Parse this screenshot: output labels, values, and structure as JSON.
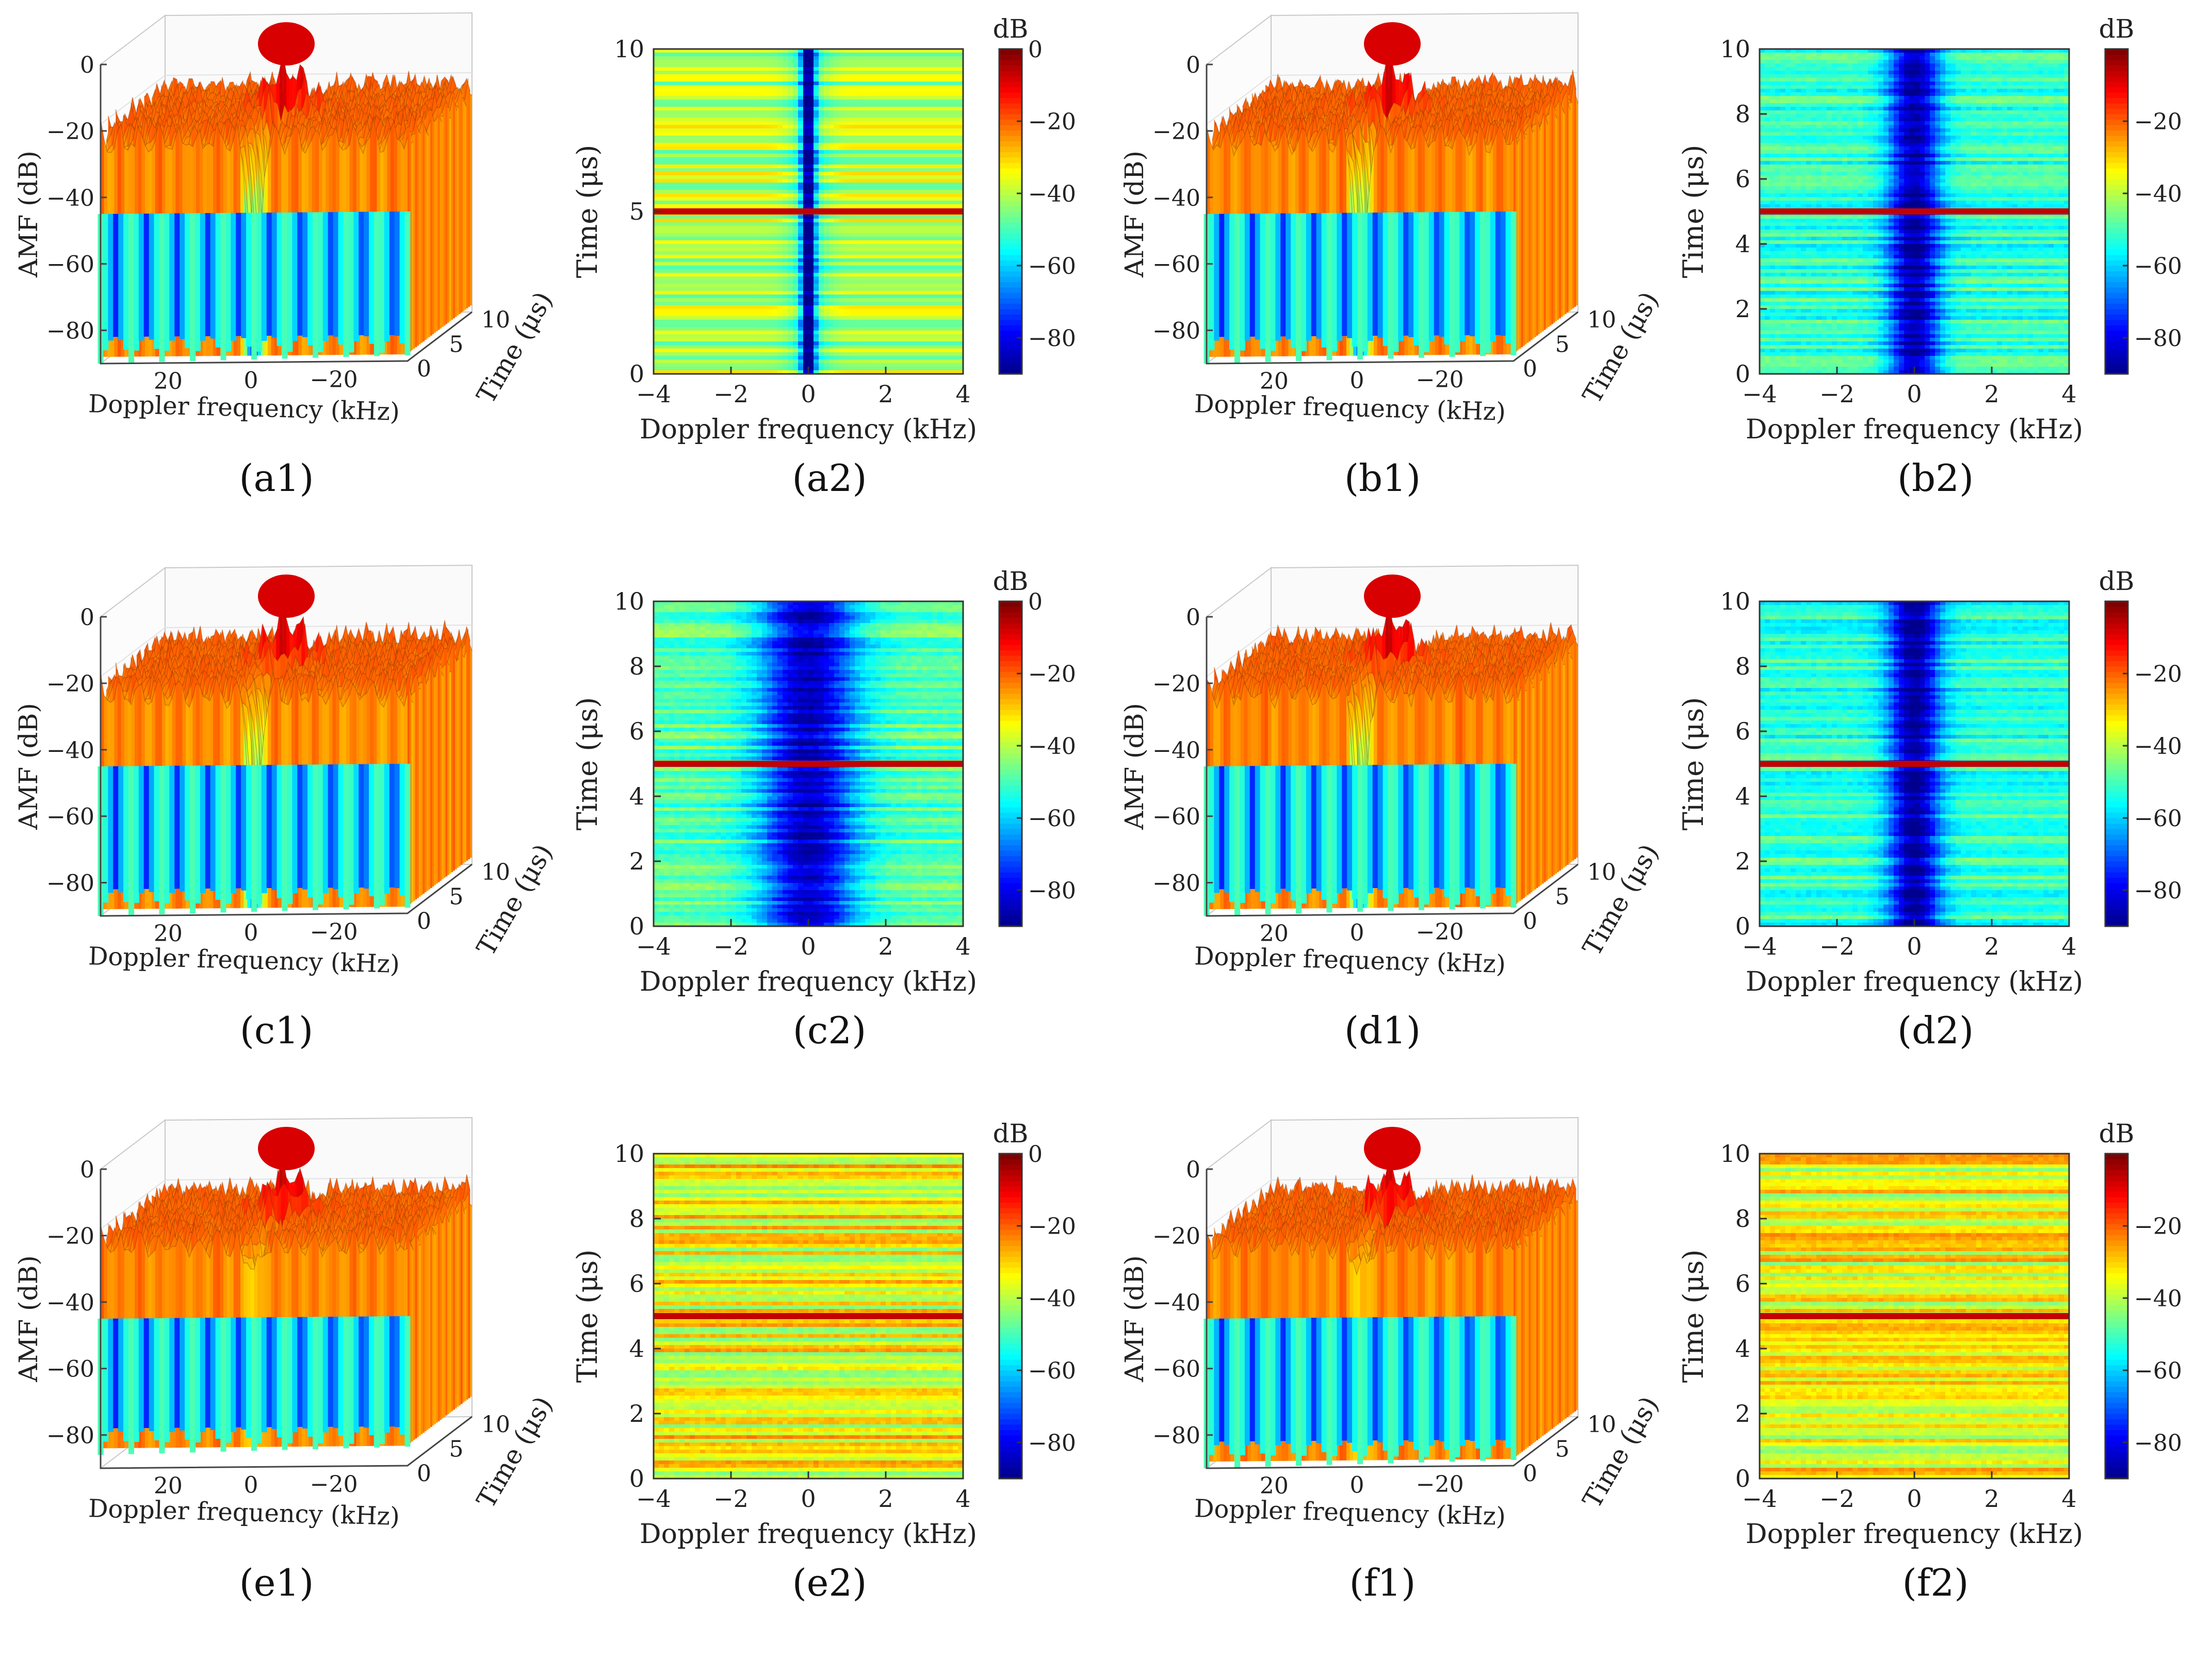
{
  "figure": {
    "colormap": [
      "#00008f",
      "#0000ff",
      "#0080ff",
      "#00ffff",
      "#80ff80",
      "#ffff00",
      "#ff8000",
      "#ff0000",
      "#800000"
    ],
    "panels": [
      {
        "id": "a1",
        "type": "surface3d",
        "caption_letter": "a1",
        "row": 0,
        "col": 0,
        "notch": 1.0,
        "floor": -88
      },
      {
        "id": "a2",
        "type": "heatmap",
        "caption_letter": "a2",
        "row": 0,
        "col": 1,
        "variant": "a"
      },
      {
        "id": "b1",
        "type": "surface3d",
        "caption_letter": "b1",
        "row": 0,
        "col": 2,
        "notch": 0.9,
        "floor": -88
      },
      {
        "id": "b2",
        "type": "heatmap",
        "caption_letter": "b2",
        "row": 0,
        "col": 3,
        "variant": "b"
      },
      {
        "id": "c1",
        "type": "surface3d",
        "caption_letter": "c1",
        "row": 1,
        "col": 0,
        "notch": 0.8,
        "floor": -88
      },
      {
        "id": "c2",
        "type": "heatmap",
        "caption_letter": "c2",
        "row": 1,
        "col": 1,
        "variant": "c"
      },
      {
        "id": "d1",
        "type": "surface3d",
        "caption_letter": "d1",
        "row": 1,
        "col": 2,
        "notch": 0.85,
        "floor": -88
      },
      {
        "id": "d2",
        "type": "heatmap",
        "caption_letter": "d2",
        "row": 1,
        "col": 3,
        "variant": "d"
      },
      {
        "id": "e1",
        "type": "surface3d",
        "caption_letter": "e1",
        "row": 2,
        "col": 0,
        "notch": 0.15,
        "floor": -84
      },
      {
        "id": "e2",
        "type": "heatmap",
        "caption_letter": "e2",
        "row": 2,
        "col": 1,
        "variant": "e"
      },
      {
        "id": "f1",
        "type": "surface3d",
        "caption_letter": "f1",
        "row": 2,
        "col": 2,
        "notch": 0.15,
        "floor": -88
      },
      {
        "id": "f2",
        "type": "heatmap",
        "caption_letter": "f2",
        "row": 2,
        "col": 3,
        "variant": "f"
      }
    ]
  },
  "chart_data": [
    {
      "type": "surface",
      "panel": "a1",
      "title": "(a1)",
      "xlabel": "Doppler frequency (kHz)",
      "ylabel": "Time (μs)",
      "zlabel": "AMF (dB)",
      "xticks": [
        "20",
        "0",
        "−20"
      ],
      "yticks": [
        "0",
        "5",
        "10"
      ],
      "zticks": [
        "0",
        "−20",
        "−40",
        "−60",
        "−80"
      ],
      "zlim": [
        -90,
        0
      ],
      "peak_db": 0,
      "description_values": {
        "peak_time_us": 5,
        "peak_doppler_khz": 0
      }
    },
    {
      "type": "heatmap",
      "panel": "a2",
      "title": "(a2)",
      "xlabel": "Doppler frequency (kHz)",
      "ylabel": "Time (μs)",
      "colorbar_label": "dB",
      "xticks": [
        "−4",
        "−2",
        "0",
        "2",
        "4"
      ],
      "yticks": [
        "0",
        "5",
        "10"
      ],
      "cticks": [
        "0",
        "−20",
        "−40",
        "−60",
        "−80"
      ],
      "xlim": [
        -4,
        4
      ],
      "ylim": [
        0,
        10
      ],
      "clim": [
        -90,
        0
      ],
      "peak_line_time_us": 5,
      "null_doppler_khz": 0
    },
    {
      "type": "surface",
      "panel": "b1",
      "title": "(b1)",
      "xlabel": "Doppler frequency (kHz)",
      "ylabel": "Time (μs)",
      "zlabel": "AMF (dB)",
      "xticks": [
        "20",
        "0",
        "−20"
      ],
      "yticks": [
        "0",
        "5",
        "10"
      ],
      "zticks": [
        "0",
        "−20",
        "−40",
        "−60",
        "−80"
      ],
      "zlim": [
        -90,
        0
      ]
    },
    {
      "type": "heatmap",
      "panel": "b2",
      "title": "(b2)",
      "xlabel": "Doppler frequency (kHz)",
      "ylabel": "Time (μs)",
      "colorbar_label": "dB",
      "xticks": [
        "−4",
        "−2",
        "0",
        "2",
        "4"
      ],
      "yticks": [
        "0",
        "2",
        "4",
        "6",
        "8",
        "10"
      ],
      "cticks": [
        "−20",
        "−40",
        "−60",
        "−80"
      ],
      "xlim": [
        -4,
        4
      ],
      "ylim": [
        0,
        10
      ],
      "clim": [
        -90,
        0
      ],
      "peak_line_time_us": 5,
      "null_doppler_khz": 0
    },
    {
      "type": "surface",
      "panel": "c1",
      "title": "(c1)",
      "xlabel": "Doppler frequency (kHz)",
      "ylabel": "Time (μs)",
      "zlabel": "AMF (dB)",
      "xticks": [
        "20",
        "0",
        "−20"
      ],
      "yticks": [
        "0",
        "5",
        "10"
      ],
      "zticks": [
        "0",
        "−20",
        "−40",
        "−60",
        "−80"
      ],
      "zlim": [
        -90,
        0
      ]
    },
    {
      "type": "heatmap",
      "panel": "c2",
      "title": "(c2)",
      "xlabel": "Doppler frequency (kHz)",
      "ylabel": "Time (μs)",
      "colorbar_label": "dB",
      "xticks": [
        "−4",
        "−2",
        "0",
        "2",
        "4"
      ],
      "yticks": [
        "0",
        "2",
        "4",
        "6",
        "8",
        "10"
      ],
      "cticks": [
        "0",
        "−20",
        "−40",
        "−60",
        "−80"
      ],
      "xlim": [
        -4,
        4
      ],
      "ylim": [
        0,
        10
      ],
      "clim": [
        -90,
        0
      ],
      "peak_line_time_us": 5,
      "null_doppler_khz": 0
    },
    {
      "type": "surface",
      "panel": "d1",
      "title": "(d1)",
      "xlabel": "Doppler frequency (kHz)",
      "ylabel": "Time (μs)",
      "zlabel": "AMF (dB)",
      "xticks": [
        "20",
        "0",
        "−20"
      ],
      "yticks": [
        "0",
        "5",
        "10"
      ],
      "zticks": [
        "0",
        "−20",
        "−40",
        "−60",
        "−80"
      ],
      "zlim": [
        -90,
        0
      ]
    },
    {
      "type": "heatmap",
      "panel": "d2",
      "title": "(d2)",
      "xlabel": "Doppler frequency (kHz)",
      "ylabel": "Time (μs)",
      "colorbar_label": "dB",
      "xticks": [
        "−4",
        "−2",
        "0",
        "2",
        "4"
      ],
      "yticks": [
        "0",
        "2",
        "4",
        "6",
        "8",
        "10"
      ],
      "cticks": [
        "−20",
        "−40",
        "−60",
        "−80"
      ],
      "xlim": [
        -4,
        4
      ],
      "ylim": [
        0,
        10
      ],
      "clim": [
        -90,
        0
      ],
      "peak_line_time_us": 5,
      "null_doppler_khz": 0
    },
    {
      "type": "surface",
      "panel": "e1",
      "title": "(e1)",
      "xlabel": "Doppler frequency (kHz)",
      "ylabel": "Time (μs)",
      "zlabel": "AMF (dB)",
      "xticks": [
        "20",
        "0",
        "−20"
      ],
      "yticks": [
        "0",
        "5",
        "10"
      ],
      "zticks": [
        "0",
        "−20",
        "−40",
        "−60",
        "−80"
      ],
      "zlim": [
        -90,
        0
      ]
    },
    {
      "type": "heatmap",
      "panel": "e2",
      "title": "(e2)",
      "xlabel": "Doppler frequency (kHz)",
      "ylabel": "Time (μs)",
      "colorbar_label": "dB",
      "xticks": [
        "−4",
        "−2",
        "0",
        "2",
        "4"
      ],
      "yticks": [
        "0",
        "2",
        "4",
        "6",
        "8",
        "10"
      ],
      "cticks": [
        "0",
        "−20",
        "−40",
        "−60",
        "−80"
      ],
      "xlim": [
        -4,
        4
      ],
      "ylim": [
        0,
        10
      ],
      "clim": [
        -90,
        0
      ],
      "peak_line_time_us": 5,
      "null_doppler_khz": null
    },
    {
      "type": "surface",
      "panel": "f1",
      "title": "(f1)",
      "xlabel": "Doppler frequency (kHz)",
      "ylabel": "Time (μs)",
      "zlabel": "AMF (dB)",
      "xticks": [
        "20",
        "0",
        "−20"
      ],
      "yticks": [
        "0",
        "5",
        "10"
      ],
      "zticks": [
        "0",
        "−20",
        "−40",
        "−60",
        "−80"
      ],
      "zlim": [
        -90,
        0
      ]
    },
    {
      "type": "heatmap",
      "panel": "f2",
      "title": "(f2)",
      "xlabel": "Doppler frequency (kHz)",
      "ylabel": "Time (μs)",
      "colorbar_label": "dB",
      "xticks": [
        "−4",
        "−2",
        "0",
        "2",
        "4"
      ],
      "yticks": [
        "0",
        "2",
        "4",
        "6",
        "8",
        "10"
      ],
      "cticks": [
        "−20",
        "−40",
        "−60",
        "−80"
      ],
      "xlim": [
        -4,
        4
      ],
      "ylim": [
        0,
        10
      ],
      "clim": [
        -90,
        0
      ],
      "peak_line_time_us": 5,
      "null_doppler_khz": null
    }
  ]
}
